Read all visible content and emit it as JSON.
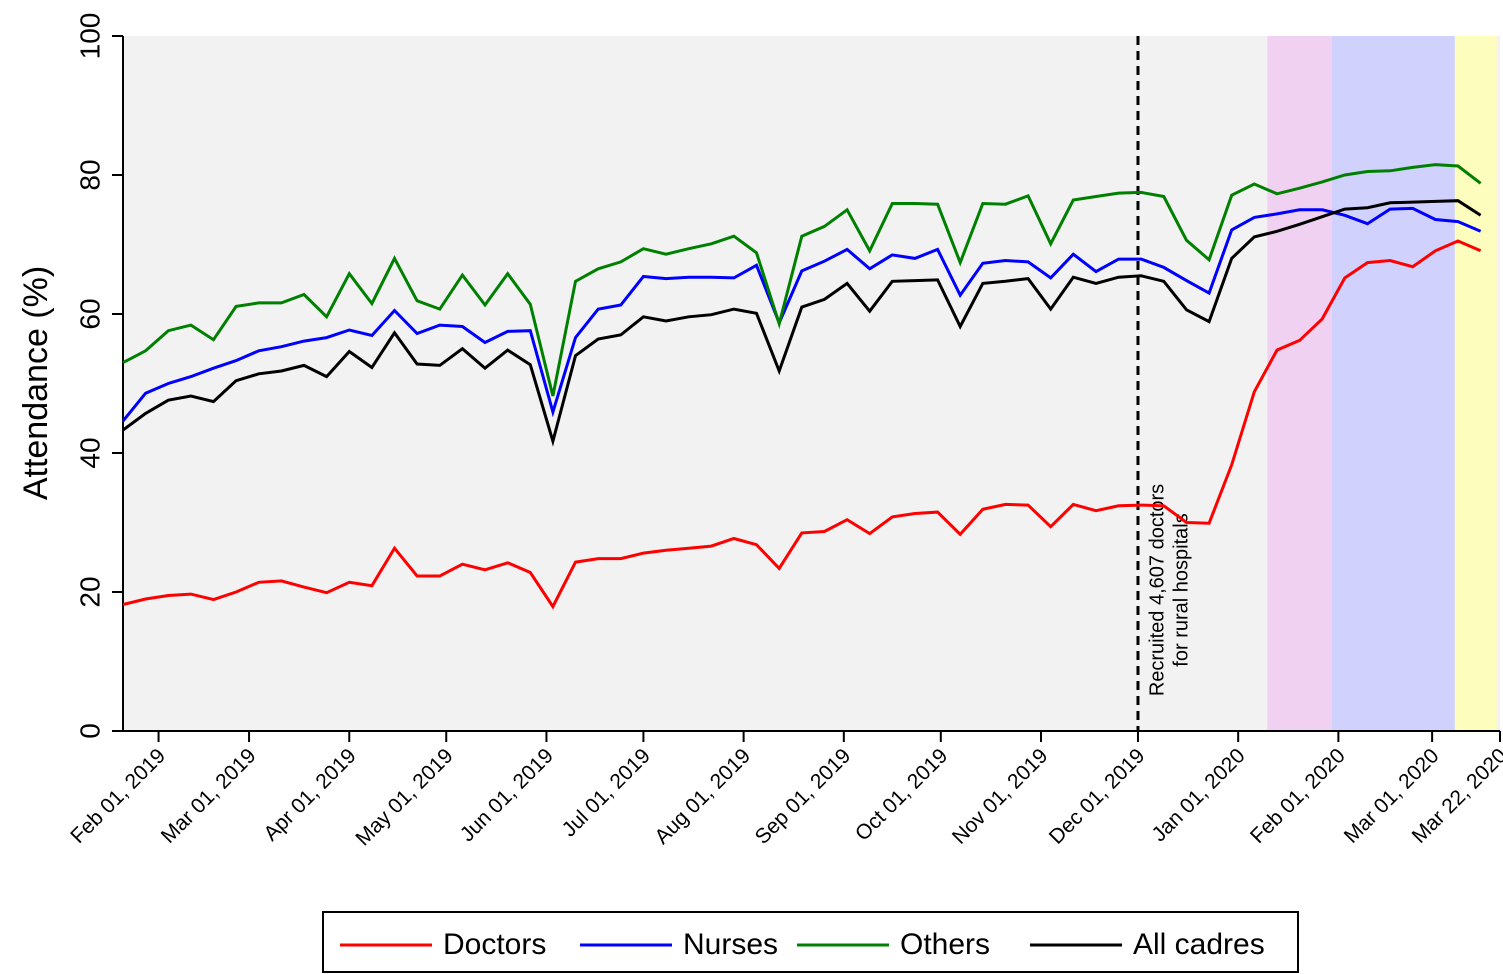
{
  "chart_data": {
    "type": "line",
    "y_label": "Attendance (%)",
    "x": [
      "2019-01-21",
      "2019-01-28",
      "2019-02-04",
      "2019-02-11",
      "2019-02-18",
      "2019-02-25",
      "2019-03-04",
      "2019-03-11",
      "2019-03-18",
      "2019-03-25",
      "2019-04-01",
      "2019-04-08",
      "2019-04-15",
      "2019-04-22",
      "2019-04-29",
      "2019-05-06",
      "2019-05-13",
      "2019-05-20",
      "2019-05-27",
      "2019-06-03",
      "2019-06-10",
      "2019-06-17",
      "2019-06-24",
      "2019-07-01",
      "2019-07-08",
      "2019-07-15",
      "2019-07-22",
      "2019-07-29",
      "2019-08-05",
      "2019-08-12",
      "2019-08-19",
      "2019-08-26",
      "2019-09-02",
      "2019-09-09",
      "2019-09-16",
      "2019-09-23",
      "2019-09-30",
      "2019-10-07",
      "2019-10-14",
      "2019-10-21",
      "2019-10-28",
      "2019-11-04",
      "2019-11-11",
      "2019-11-18",
      "2019-11-25",
      "2019-12-02",
      "2019-12-09",
      "2019-12-16",
      "2019-12-23",
      "2019-12-30",
      "2020-01-06",
      "2020-01-13",
      "2020-01-20",
      "2020-01-27",
      "2020-02-03",
      "2020-02-10",
      "2020-02-17",
      "2020-02-24",
      "2020-03-02",
      "2020-03-09",
      "2020-03-16"
    ],
    "series": [
      {
        "name": "Doctors",
        "color": "#ff0000",
        "values": [
          18.2,
          19.0,
          19.5,
          19.7,
          18.9,
          20.0,
          21.4,
          21.6,
          20.7,
          19.9,
          21.4,
          20.9,
          26.3,
          22.3,
          22.3,
          24.0,
          23.2,
          24.2,
          22.8,
          17.9,
          24.3,
          24.8,
          24.8,
          25.6,
          26.0,
          26.3,
          26.6,
          27.7,
          26.8,
          23.4,
          28.5,
          28.7,
          30.4,
          28.4,
          30.8,
          31.3,
          31.5,
          28.3,
          31.9,
          32.6,
          32.5,
          29.4,
          32.6,
          31.7,
          32.4,
          32.5,
          32.4,
          30.0,
          29.9,
          38.3,
          48.8,
          54.8,
          56.2,
          59.3,
          65.2,
          67.4,
          67.7,
          66.8,
          69.1,
          70.5,
          69.1
        ]
      },
      {
        "name": "Nurses",
        "color": "#0000ff",
        "values": [
          44.6,
          48.6,
          50.0,
          51.0,
          52.2,
          53.3,
          54.7,
          55.3,
          56.1,
          56.6,
          57.7,
          56.9,
          60.5,
          57.2,
          58.4,
          58.2,
          55.9,
          57.5,
          57.6,
          45.9,
          56.6,
          60.7,
          61.3,
          65.4,
          65.1,
          65.3,
          65.3,
          65.2,
          67.0,
          58.7,
          66.2,
          67.6,
          69.3,
          66.5,
          68.5,
          68.0,
          69.3,
          62.7,
          67.3,
          67.7,
          67.5,
          65.2,
          68.6,
          66.1,
          67.9,
          67.9,
          66.7,
          64.8,
          63.0,
          72.1,
          73.9,
          74.4,
          75.0,
          75.0,
          74.2,
          73.0,
          75.1,
          75.2,
          73.6,
          73.3,
          71.9
        ]
      },
      {
        "name": "Others",
        "color": "#008000",
        "values": [
          53.0,
          54.7,
          57.6,
          58.4,
          56.3,
          61.1,
          61.6,
          61.6,
          62.8,
          59.6,
          65.8,
          61.5,
          68.0,
          61.9,
          60.7,
          65.6,
          61.3,
          65.8,
          61.4,
          48.2,
          64.7,
          66.5,
          67.5,
          69.4,
          68.6,
          69.4,
          70.1,
          71.2,
          68.8,
          58.6,
          71.2,
          72.6,
          75.0,
          69.1,
          75.9,
          75.9,
          75.8,
          67.4,
          75.9,
          75.8,
          77.0,
          70.1,
          76.4,
          76.9,
          77.4,
          77.5,
          76.9,
          70.6,
          67.8,
          77.1,
          78.7,
          77.3,
          78.1,
          79.0,
          80.0,
          80.5,
          80.6,
          81.1,
          81.5,
          81.3,
          78.8
        ]
      },
      {
        "name": "All cadres",
        "color": "#000000",
        "values": [
          43.3,
          45.7,
          47.6,
          48.2,
          47.4,
          50.4,
          51.4,
          51.8,
          52.6,
          51.0,
          54.6,
          52.3,
          57.3,
          52.8,
          52.6,
          55.0,
          52.2,
          54.8,
          52.7,
          41.7,
          54.0,
          56.4,
          57.0,
          59.6,
          59.0,
          59.6,
          59.9,
          60.7,
          60.1,
          51.8,
          61.0,
          62.1,
          64.4,
          60.4,
          64.7,
          64.8,
          64.9,
          58.2,
          64.4,
          64.7,
          65.1,
          60.7,
          65.3,
          64.4,
          65.3,
          65.5,
          64.7,
          60.6,
          58.9,
          68.0,
          71.1,
          71.9,
          72.9,
          74.0,
          75.1,
          75.3,
          76.0,
          76.1,
          76.2,
          76.3,
          74.2
        ]
      }
    ],
    "xlim": [
      "2019-01-21",
      "2020-03-22"
    ],
    "xticks": [
      {
        "value": "2019-02-01",
        "label": "Feb 01, 2019"
      },
      {
        "value": "2019-03-01",
        "label": "Mar 01, 2019"
      },
      {
        "value": "2019-04-01",
        "label": "Apr 01, 2019"
      },
      {
        "value": "2019-05-01",
        "label": "May 01, 2019"
      },
      {
        "value": "2019-06-01",
        "label": "Jun 01, 2019"
      },
      {
        "value": "2019-07-01",
        "label": "Jul 01, 2019"
      },
      {
        "value": "2019-08-01",
        "label": "Aug 01, 2019"
      },
      {
        "value": "2019-09-01",
        "label": "Sep 01, 2019"
      },
      {
        "value": "2019-10-01",
        "label": "Oct 01, 2019"
      },
      {
        "value": "2019-11-01",
        "label": "Nov 01, 2019"
      },
      {
        "value": "2019-12-01",
        "label": "Dec 01, 2019"
      },
      {
        "value": "2020-01-01",
        "label": "Jan 01, 2020"
      },
      {
        "value": "2020-02-01",
        "label": "Feb 01, 2020"
      },
      {
        "value": "2020-03-01",
        "label": "Mar 01, 2020"
      },
      {
        "value": "2020-03-22",
        "label": "Mar 22, 2020"
      }
    ],
    "ylim": [
      0,
      100
    ],
    "yticks": [
      0,
      20,
      40,
      60,
      80,
      100
    ],
    "shaded_regions": [
      {
        "start": "2020-01-10",
        "end": "2020-01-30",
        "color": "#f0c8f0"
      },
      {
        "start": "2020-01-30",
        "end": "2020-03-08",
        "color": "#c8c8ff"
      },
      {
        "start": "2020-03-08",
        "end": "2020-03-21",
        "color": "#ffffb0"
      }
    ],
    "annotation": {
      "x": "2019-12-01",
      "lines": [
        "Recruited 4,607 doctors",
        "for rural hospitals"
      ]
    },
    "legend": "bottom"
  }
}
